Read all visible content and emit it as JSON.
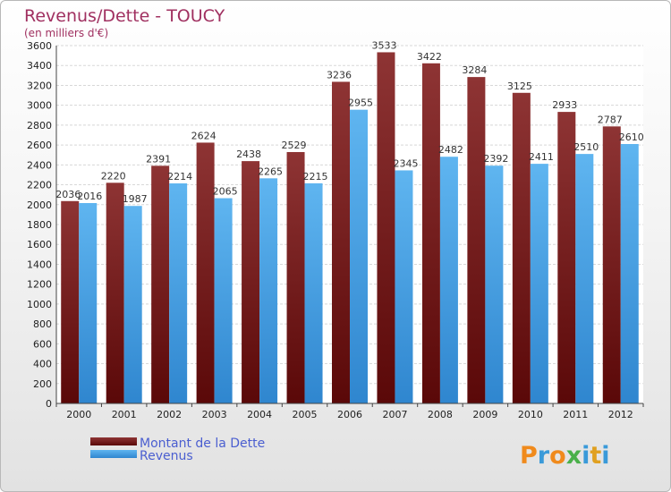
{
  "chart_data": {
    "type": "bar",
    "title": "Revenus/Dette - TOUCY",
    "subtitle": "(en milliers d'€)",
    "categories": [
      "2000",
      "2001",
      "2002",
      "2003",
      "2004",
      "2005",
      "2006",
      "2007",
      "2008",
      "2009",
      "2010",
      "2011",
      "2012"
    ],
    "series": [
      {
        "name": "Montant de la Dette",
        "color": "#7a1c1c",
        "values": [
          2036,
          2220,
          2391,
          2624,
          2438,
          2529,
          3236,
          3533,
          3422,
          3284,
          3125,
          2933,
          2787
        ]
      },
      {
        "name": "Revenus",
        "color": "#4aa3e8",
        "values": [
          2016,
          1987,
          2214,
          2065,
          2265,
          2215,
          2955,
          2345,
          2482,
          2392,
          2411,
          2510,
          2610
        ]
      }
    ],
    "yticks": [
      0,
      200,
      400,
      600,
      800,
      1000,
      1200,
      1400,
      1600,
      1800,
      2000,
      2200,
      2400,
      2600,
      2800,
      3000,
      3200,
      3400,
      3600
    ],
    "ylim": [
      0,
      3600
    ],
    "grid": true,
    "legend_position": "bottom-left"
  },
  "logo": {
    "letters": [
      "P",
      "r",
      "o",
      "x",
      "i",
      "t",
      "i"
    ],
    "colors": [
      "#f08a1c",
      "#3a9ad9",
      "#f08a1c",
      "#4ab04a",
      "#3a9ad9",
      "#e0a020",
      "#3a9ad9"
    ]
  }
}
